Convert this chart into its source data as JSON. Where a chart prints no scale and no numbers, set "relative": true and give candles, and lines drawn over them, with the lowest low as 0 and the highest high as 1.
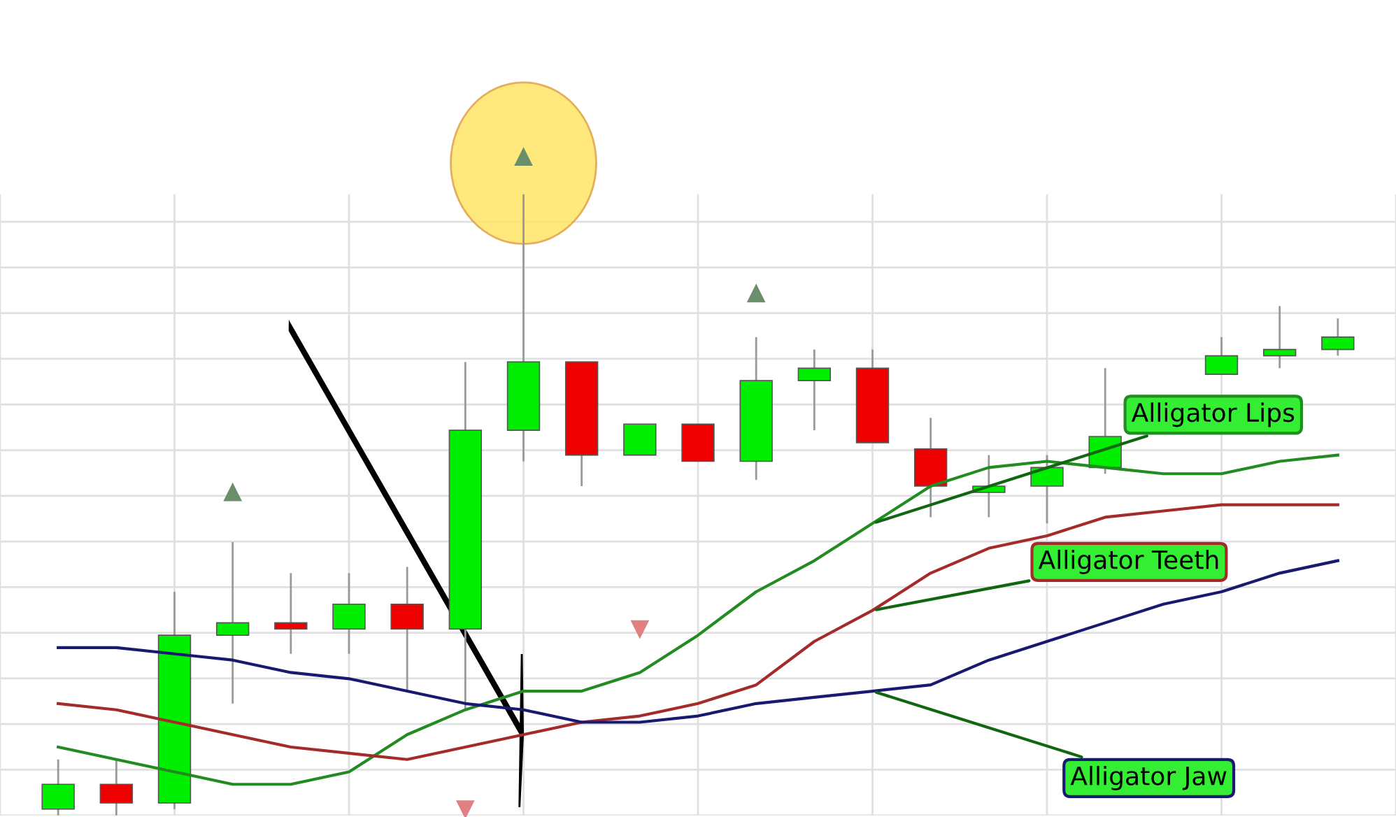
{
  "chart_data": {
    "type": "candlestick",
    "relative": true,
    "grid": true,
    "legend": "right",
    "categories": [
      null,
      null,
      null,
      null,
      null,
      null,
      null,
      null,
      null,
      null,
      null,
      null,
      null,
      null,
      null,
      null,
      null,
      null,
      null,
      null,
      null,
      null,
      null
    ],
    "ohlc": [
      [
        0.01,
        0.09,
        0,
        0.05
      ],
      [
        0.05,
        0.09,
        0,
        0.02
      ],
      [
        0.02,
        0.36,
        0.01,
        0.29
      ],
      [
        0.29,
        0.44,
        0.18,
        0.31
      ],
      [
        0.31,
        0.39,
        0.26,
        0.3
      ],
      [
        0.3,
        0.39,
        0.26,
        0.34
      ],
      [
        0.34,
        0.4,
        0.2,
        0.3
      ],
      [
        0.3,
        0.73,
        0.17,
        0.62
      ],
      [
        0.62,
        1.0,
        0.57,
        0.73
      ],
      [
        0.73,
        0.73,
        0.53,
        0.58
      ],
      [
        0.58,
        0.63,
        0.58,
        0.63
      ],
      [
        0.63,
        0.63,
        0.57,
        0.57
      ],
      [
        0.57,
        0.77,
        0.54,
        0.7
      ],
      [
        0.7,
        0.75,
        0.62,
        0.72
      ],
      [
        0.72,
        0.75,
        0.6,
        0.6
      ],
      [
        0.59,
        0.64,
        0.48,
        0.53
      ],
      [
        0.52,
        0.58,
        0.48,
        0.53
      ],
      [
        0.53,
        0.58,
        0.47,
        0.56
      ],
      [
        0.56,
        0.72,
        0.55,
        0.61
      ],
      null,
      [
        0.71,
        0.77,
        0.71,
        0.74
      ],
      [
        0.74,
        0.82,
        0.72,
        0.75
      ],
      [
        0.75,
        0.8,
        0.74,
        0.77
      ]
    ],
    "colors": [
      "#00ee00",
      "#ee0000",
      "#00ee00",
      "#00ee00",
      "#ee0000",
      "#00ee00",
      "#ee0000",
      "#00ee00",
      "#00ee00",
      "#ee0000",
      "#00ee00",
      "#ee0000",
      "#00ee00",
      "#00ee00",
      "#ee0000",
      "#ee0000",
      "#00ee00",
      "#00ee00",
      "#00ee00",
      null,
      "#00ee00",
      "#00ee00",
      "#00ee00"
    ],
    "series": [
      {
        "name": "Alligator Lips",
        "type": "line",
        "color": "#228b22",
        "values": [
          0.11,
          0.09,
          0.07,
          0.05,
          0.05,
          0.07,
          0.13,
          0.17,
          0.2,
          0.2,
          0.23,
          0.29,
          0.36,
          0.41,
          0.47,
          0.53,
          0.56,
          0.57,
          0.56,
          0.55,
          0.55,
          0.57,
          0.58
        ]
      },
      {
        "name": "Alligator Teeth",
        "type": "line",
        "color": "#a52a2a",
        "values": [
          0.18,
          0.17,
          0.15,
          0.13,
          0.11,
          0.1,
          0.09,
          0.11,
          0.13,
          0.15,
          0.16,
          0.18,
          0.21,
          0.28,
          0.33,
          0.39,
          0.43,
          0.45,
          0.48,
          0.49,
          0.5,
          0.5,
          0.5
        ]
      },
      {
        "name": "Alligator Jaw",
        "type": "line",
        "color": "#191970",
        "values": [
          0.27,
          0.27,
          0.26,
          0.25,
          0.23,
          0.22,
          0.2,
          0.18,
          0.17,
          0.15,
          0.15,
          0.16,
          0.18,
          0.19,
          0.2,
          0.21,
          0.25,
          0.28,
          0.31,
          0.34,
          0.36,
          0.39,
          0.41
        ]
      }
    ]
  }
}
